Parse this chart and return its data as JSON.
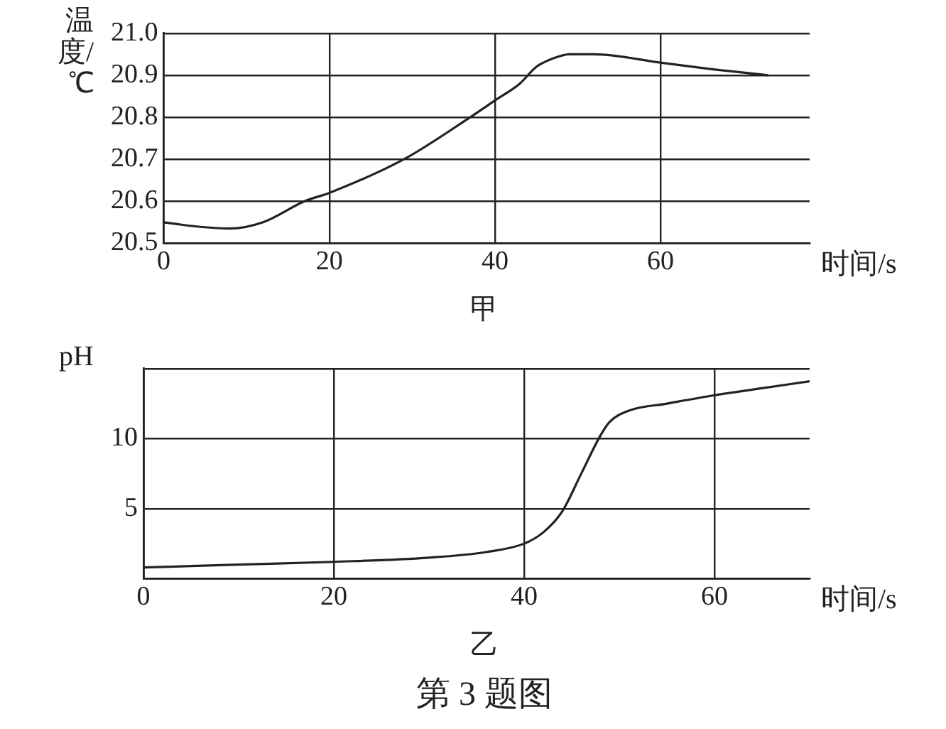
{
  "chart_data": [
    {
      "type": "line",
      "ylabel": "温度/℃",
      "xlabel": "时间/s",
      "annotations": [
        "甲"
      ],
      "xlim": [
        0,
        78
      ],
      "xticks": [
        0,
        20,
        40,
        60
      ],
      "ylim": [
        20.5,
        21.0
      ],
      "yticks": [
        {
          "value": 20.5,
          "label": "20.5"
        },
        20.6,
        20.7,
        20.8,
        20.9,
        {
          "value": 21.0,
          "label": "21.0"
        }
      ],
      "grid": true,
      "marker": "none",
      "line_style": "solid",
      "series": [
        {
          "color": "#222222",
          "x": [
            0,
            4,
            8,
            12,
            17,
            20,
            29,
            37,
            40,
            43,
            45,
            47,
            49,
            52,
            60,
            66,
            73
          ],
          "values": [
            20.55,
            20.54,
            20.535,
            20.55,
            20.6,
            20.62,
            20.7,
            20.8,
            20.84,
            20.88,
            20.92,
            20.94,
            20.95,
            20.95,
            20.93,
            20.915,
            20.9
          ]
        }
      ]
    },
    {
      "type": "line",
      "ylabel": "pH",
      "xlabel": "时间/s",
      "annotations": [
        "乙",
        "第 3 题图"
      ],
      "xlim": [
        0,
        70
      ],
      "xticks": [
        0,
        20,
        40,
        60
      ],
      "ylim": [
        0,
        15
      ],
      "yticks": [
        {
          "value": 0,
          "label": null
        },
        5,
        10,
        {
          "value": 15,
          "label": null
        }
      ],
      "grid": true,
      "marker": "none",
      "line_style": "solid",
      "series": [
        {
          "color": "#222222",
          "x": [
            0,
            10,
            20,
            30,
            36,
            40,
            42,
            44,
            46,
            48,
            49,
            51,
            55,
            60,
            65,
            70
          ],
          "values": [
            0.8,
            1.0,
            1.2,
            1.5,
            1.9,
            2.5,
            3.3,
            4.8,
            7.5,
            10.2,
            11.2,
            12,
            12.5,
            13.1,
            13.6,
            14.1
          ]
        }
      ]
    }
  ]
}
